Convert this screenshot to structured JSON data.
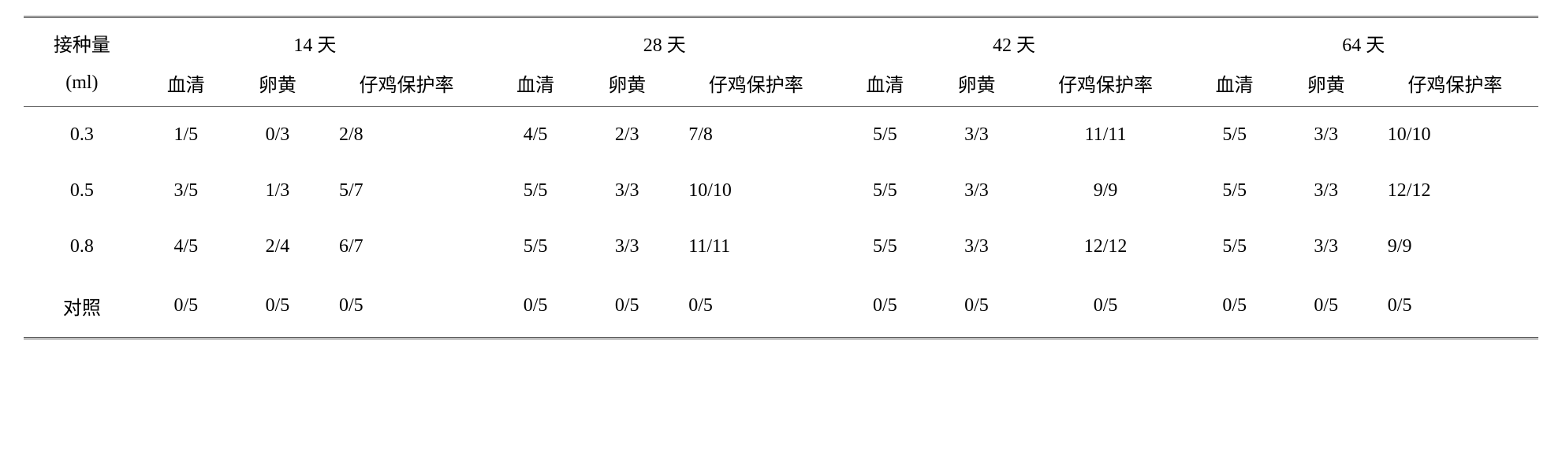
{
  "table": {
    "header": {
      "dose_label": "接种量",
      "dose_unit": "(ml)",
      "periods": [
        "14 天",
        "28 天",
        "42 天",
        "64 天"
      ],
      "sub_labels": {
        "serum": "血清",
        "yolk": "卵黄",
        "protection": "仔鸡保护率"
      }
    },
    "rows": [
      {
        "dose": "0.3",
        "p": [
          {
            "serum": "1/5",
            "yolk": "0/3",
            "prot": "2/8"
          },
          {
            "serum": "4/5",
            "yolk": "2/3",
            "prot": "7/8"
          },
          {
            "serum": "5/5",
            "yolk": "3/3",
            "prot": "11/11"
          },
          {
            "serum": "5/5",
            "yolk": "3/3",
            "prot": "10/10"
          }
        ]
      },
      {
        "dose": "0.5",
        "p": [
          {
            "serum": "3/5",
            "yolk": "1/3",
            "prot": "5/7"
          },
          {
            "serum": "5/5",
            "yolk": "3/3",
            "prot": "10/10"
          },
          {
            "serum": "5/5",
            "yolk": "3/3",
            "prot": "9/9"
          },
          {
            "serum": "5/5",
            "yolk": "3/3",
            "prot": "12/12"
          }
        ]
      },
      {
        "dose": "0.8",
        "p": [
          {
            "serum": "4/5",
            "yolk": "2/4",
            "prot": "6/7"
          },
          {
            "serum": "5/5",
            "yolk": "3/3",
            "prot": "11/11"
          },
          {
            "serum": "5/5",
            "yolk": "3/3",
            "prot": "12/12"
          },
          {
            "serum": "5/5",
            "yolk": "3/3",
            "prot": "9/9"
          }
        ]
      },
      {
        "dose": "对照",
        "p": [
          {
            "serum": "0/5",
            "yolk": "0/5",
            "prot": "0/5"
          },
          {
            "serum": "0/5",
            "yolk": "0/5",
            "prot": "0/5"
          },
          {
            "serum": "0/5",
            "yolk": "0/5",
            "prot": "0/5"
          },
          {
            "serum": "0/5",
            "yolk": "0/5",
            "prot": "0/5"
          }
        ]
      }
    ]
  }
}
